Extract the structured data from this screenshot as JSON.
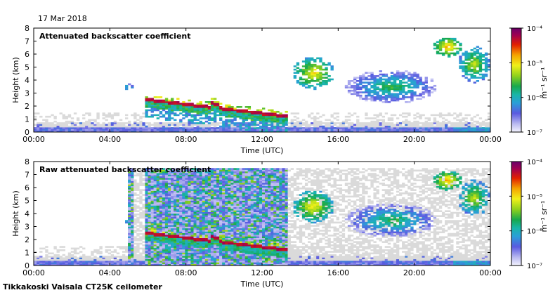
{
  "date": "17 Mar 2018",
  "footer": "Tikkakoski Vaisala CT25K ceilometer",
  "colors": {
    "clear": "#ffffff",
    "noise": "#dadada"
  },
  "chart_data": [
    {
      "type": "heatmap",
      "title": "Attenuated backscatter coefficient",
      "xlabel": "Time (UTC)",
      "ylabel": "Height (km)",
      "xticks": [
        "00:00",
        "04:00",
        "08:00",
        "12:00",
        "16:00",
        "20:00",
        "00:00"
      ],
      "xlim": [
        0,
        24
      ],
      "ylim": [
        0,
        8
      ],
      "yticks": [
        "0",
        "1",
        "2",
        "3",
        "4",
        "5",
        "6",
        "7",
        "8"
      ],
      "colorbar": {
        "label": "m⁻¹ sr⁻¹",
        "ticks": [
          "10⁻⁷",
          "10⁻⁶",
          "10⁻⁵",
          "10⁻⁴"
        ],
        "range_log10": [
          -7,
          -4
        ]
      },
      "features": [
        {
          "name": "surface-layer",
          "x": [
            0,
            24
          ],
          "y_km": [
            0,
            0.8
          ],
          "log10_value": -6.3
        },
        {
          "name": "low-cloud-layer",
          "x": [
            5.9,
            13.4
          ],
          "y_km_start": 2.5,
          "y_km_end": 1.2,
          "log10_value": -4.2
        },
        {
          "name": "small-cloud",
          "x": [
            4.8,
            5.2
          ],
          "y_km": [
            3.2,
            3.7
          ],
          "log10_value": -5.2
        },
        {
          "name": "mid-cloud",
          "x": [
            13.6,
            15.8
          ],
          "y_km": [
            3.3,
            5.8
          ],
          "log10_value": -4.8
        },
        {
          "name": "mid-cloud-band",
          "x": [
            16.4,
            21.2
          ],
          "y_km": [
            2.2,
            4.8
          ],
          "log10_value": -5.4
        },
        {
          "name": "high-cloud",
          "x": [
            21.0,
            22.5
          ],
          "y_km": [
            5.8,
            7.3
          ],
          "log10_value": -4.6
        },
        {
          "name": "mid-cloud-late",
          "x": [
            22.3,
            24.0
          ],
          "y_km": [
            3.8,
            6.6
          ],
          "log10_value": -5.0
        }
      ]
    },
    {
      "type": "heatmap",
      "title": "Raw attenuated backscatter coefficient",
      "xlabel": "Time (UTC)",
      "ylabel": "Height (km)",
      "xticks": [
        "00:00",
        "04:00",
        "08:00",
        "12:00",
        "16:00",
        "20:00",
        "00:00"
      ],
      "xlim": [
        0,
        24
      ],
      "ylim": [
        0,
        8
      ],
      "yticks": [
        "0",
        "1",
        "2",
        "3",
        "4",
        "5",
        "6",
        "7",
        "8"
      ],
      "colorbar": {
        "label": "m⁻¹ sr⁻¹",
        "ticks": [
          "10⁻⁷",
          "10⁻⁶",
          "10⁻⁵",
          "10⁻⁴"
        ],
        "range_log10": [
          -7,
          -4
        ]
      },
      "features": [
        {
          "name": "surface-layer",
          "x": [
            0,
            24
          ],
          "y_km": [
            0,
            0.8
          ],
          "log10_value": -6.3
        },
        {
          "name": "noise-region",
          "x": [
            5.0,
            13.4
          ],
          "y_km": [
            0,
            7.5
          ],
          "log10_value": -6.0
        },
        {
          "name": "low-cloud-layer",
          "x": [
            5.9,
            13.4
          ],
          "y_km_start": 2.5,
          "y_km_end": 1.2,
          "log10_value": -4.2
        },
        {
          "name": "small-cloud",
          "x": [
            4.8,
            5.2
          ],
          "y_km": [
            3.2,
            3.7
          ],
          "log10_value": -5.2
        },
        {
          "name": "mid-cloud",
          "x": [
            13.6,
            15.8
          ],
          "y_km": [
            3.3,
            5.8
          ],
          "log10_value": -4.8
        },
        {
          "name": "mid-cloud-band",
          "x": [
            16.4,
            21.2
          ],
          "y_km": [
            2.2,
            4.8
          ],
          "log10_value": -5.4
        },
        {
          "name": "high-cloud",
          "x": [
            21.0,
            22.5
          ],
          "y_km": [
            5.8,
            7.3
          ],
          "log10_value": -4.6
        },
        {
          "name": "mid-cloud-late",
          "x": [
            22.3,
            24.0
          ],
          "y_km": [
            3.8,
            6.6
          ],
          "log10_value": -5.0
        }
      ]
    }
  ]
}
